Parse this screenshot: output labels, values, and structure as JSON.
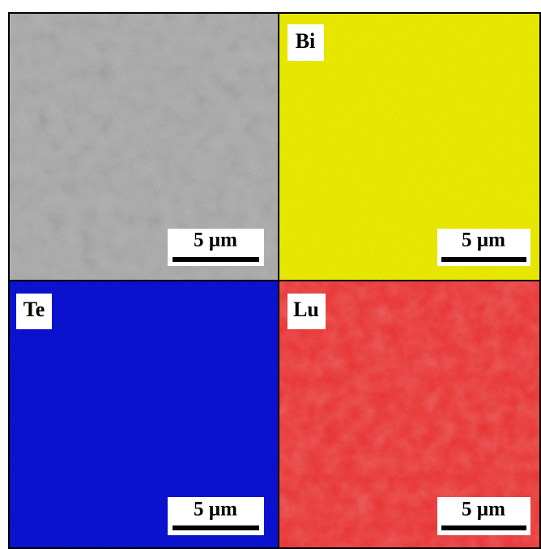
{
  "panels": [
    {
      "scale": "5 µm"
    },
    {
      "label": "Bi",
      "scale": "5 µm"
    },
    {
      "label": "Te",
      "scale": "5 µm"
    },
    {
      "label": "Lu",
      "scale": "5 µm"
    }
  ]
}
